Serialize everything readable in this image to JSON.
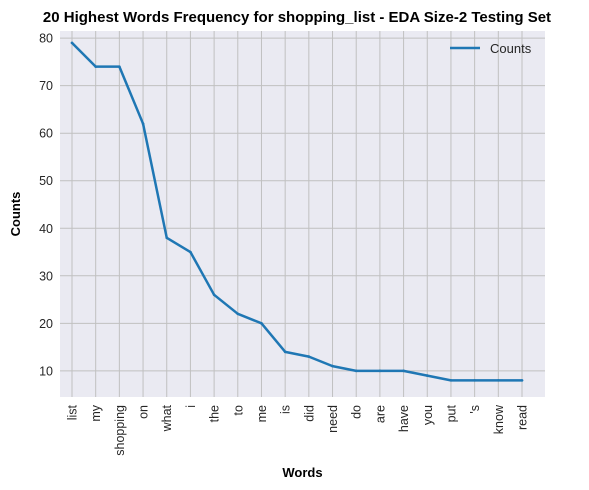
{
  "chart_data": {
    "type": "line",
    "title": "20 Highest Words Frequency for shopping_list - EDA Size-2 Testing Set",
    "xlabel": "Words",
    "ylabel": "Counts",
    "categories": [
      "list",
      "my",
      "shopping",
      "on",
      "what",
      "i",
      "the",
      "to",
      "me",
      "is",
      "did",
      "need",
      "do",
      "are",
      "have",
      "you",
      "put",
      "'s",
      "know",
      "read"
    ],
    "series": [
      {
        "name": "Counts",
        "values": [
          79,
          74,
          74,
          62,
          38,
          35,
          26,
          22,
          20,
          14,
          13,
          11,
          10,
          10,
          10,
          9,
          8,
          8,
          8,
          8
        ]
      }
    ],
    "ylim": [
      4.5,
      81.5
    ],
    "yticks": [
      10,
      20,
      30,
      40,
      50,
      60,
      70,
      80
    ],
    "grid": true,
    "legend_position": "top-right",
    "colors": {
      "line": "#1f77b4",
      "background": "#eaeaf2",
      "grid": "#c0c0c0"
    }
  }
}
